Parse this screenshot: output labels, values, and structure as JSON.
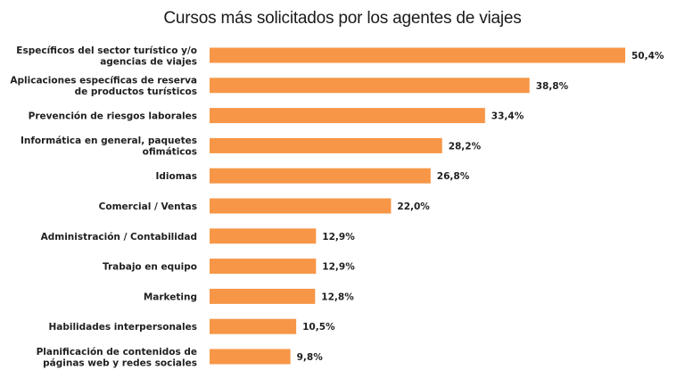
{
  "chart_data": {
    "type": "bar",
    "orientation": "horizontal",
    "title": "Cursos más solicitados por los agentes de viajes",
    "categories": [
      [
        "Específicos del sector turístico y/o",
        "agencias de viajes"
      ],
      [
        "Aplicaciones específicas de reserva",
        "de productos turísticos"
      ],
      [
        "Prevención de riesgos laborales"
      ],
      [
        "Informática en general, paquetes",
        "ofimáticos"
      ],
      [
        "Idiomas"
      ],
      [
        "Comercial / Ventas"
      ],
      [
        "Administración / Contabilidad"
      ],
      [
        "Trabajo en equipo"
      ],
      [
        "Marketing"
      ],
      [
        "Habilidades interpersonales"
      ],
      [
        "Planificación de contenidos de",
        "páginas web y redes sociales"
      ]
    ],
    "values": [
      50.4,
      38.8,
      33.4,
      28.2,
      26.8,
      22.0,
      12.9,
      12.9,
      12.8,
      10.5,
      9.8
    ],
    "value_labels": [
      "50,4%",
      "38,8%",
      "33,4%",
      "28,2%",
      "26,8%",
      "22,0%",
      "12,9%",
      "12,9%",
      "12,8%",
      "10,5%",
      "9,8%"
    ],
    "xlim": [
      0,
      50.4
    ],
    "bar_color": "#f79646",
    "grid": false,
    "legend": "none"
  }
}
